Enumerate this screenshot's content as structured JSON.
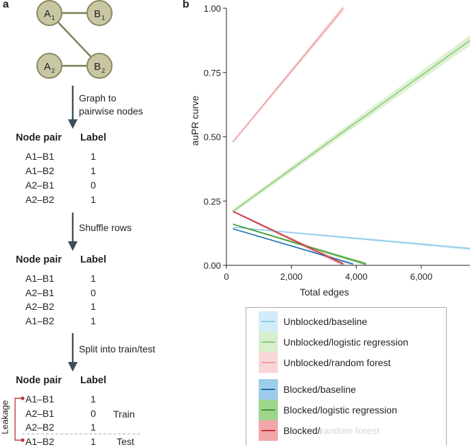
{
  "panel_a": {
    "letter": "a",
    "graph": {
      "nodes": [
        {
          "id": "A1",
          "main": "A",
          "sub": "1"
        },
        {
          "id": "B1",
          "main": "B",
          "sub": "1"
        },
        {
          "id": "A2",
          "main": "A",
          "sub": "2"
        },
        {
          "id": "B2",
          "main": "B",
          "sub": "2"
        }
      ],
      "edges": [
        [
          "A1",
          "B1"
        ],
        [
          "A1",
          "B2"
        ],
        [
          "A2",
          "B2"
        ]
      ],
      "colors": {
        "node_fill": "#c8c6a3",
        "node_stroke": "#8a8860",
        "edge": "#7c7a55"
      }
    },
    "steps": [
      {
        "lines": [
          "Graph to",
          "pairwise nodes"
        ]
      },
      {
        "lines": [
          "Shuffle rows"
        ]
      },
      {
        "lines": [
          "Split into train/test"
        ]
      }
    ],
    "tables": [
      {
        "header": [
          "Node pair",
          "Label"
        ],
        "rows": [
          [
            "A1–B1",
            "1"
          ],
          [
            "A1–B2",
            "1"
          ],
          [
            "A2–B1",
            "0"
          ],
          [
            "A2–B2",
            "1"
          ]
        ]
      },
      {
        "header": [
          "Node pair",
          "Label"
        ],
        "rows": [
          [
            "A1–B1",
            "1"
          ],
          [
            "A2–B1",
            "0"
          ],
          [
            "A2–B2",
            "1"
          ],
          [
            "A1–B2",
            "1"
          ]
        ]
      },
      {
        "header": [
          "Node pair",
          "Label"
        ],
        "rows": [
          [
            "A1–B1",
            "1"
          ],
          [
            "A2–B1",
            "0"
          ],
          [
            "A2–B2",
            "1"
          ],
          [
            "A1–B2",
            "1"
          ]
        ],
        "split_labels": {
          "train": "Train",
          "test": "Test"
        }
      }
    ],
    "leakage_label": "Leakage",
    "colors": {
      "arrow": "#3d4f5c",
      "leakage": "#c0393f"
    }
  },
  "panel_b": {
    "letter": "b",
    "chart_data": {
      "type": "line",
      "xlabel": "Total edges",
      "ylabel": "auPR curve",
      "xlim": [
        0,
        7500
      ],
      "ylim": [
        0,
        1.0
      ],
      "xticks": [
        0,
        2000,
        4000,
        6000
      ],
      "xtick_labels": [
        "0",
        "2,000",
        "4,000",
        "6,000"
      ],
      "yticks": [
        0,
        0.25,
        0.5,
        0.75,
        1.0
      ],
      "ytick_labels": [
        "0.00",
        "0.25",
        "0.50",
        "0.75",
        "1.00"
      ],
      "grid": false,
      "legend_position": "bottom-right, below plot",
      "series": [
        {
          "name": "Unblocked/baseline",
          "color": "#8fcbe8",
          "band": "#d3ecf8",
          "x": [
            200,
            7500
          ],
          "y": [
            0.148,
            0.065
          ],
          "ci": 0.006
        },
        {
          "name": "Unblocked/logistic regression",
          "color": "#8cca78",
          "band": "#d8eecd",
          "x": [
            200,
            7500
          ],
          "y": [
            0.21,
            0.875
          ],
          "ci": 0.02
        },
        {
          "name": "Unblocked/random forest",
          "color": "#ee9ea4",
          "band": "#f9d6d8",
          "x": [
            200,
            3600
          ],
          "y": [
            0.48,
            1.0
          ],
          "ci": 0.012
        },
        {
          "name": "Blocked/baseline",
          "color": "#1e6fae",
          "band": "#9dcdea",
          "x": [
            200,
            3900
          ],
          "y": [
            0.142,
            0.005
          ],
          "ci": 0.004
        },
        {
          "name": "Blocked/logistic regression",
          "color": "#3f9b35",
          "band": "#9ed58c",
          "x": [
            200,
            4300
          ],
          "y": [
            0.16,
            0.005
          ],
          "ci": 0.006
        },
        {
          "name": "Blocked/random forest",
          "color": "#c7343d",
          "band": "#f2a6aa",
          "x": [
            200,
            3600
          ],
          "y": [
            0.21,
            0.005
          ],
          "ci": 0.008
        }
      ]
    },
    "legend": [
      {
        "label": "Unblocked/baseline",
        "line": "#8fcbe8",
        "band": "#d3ecf8"
      },
      {
        "label": "Unblocked/logistic regression",
        "line": "#8cca78",
        "band": "#d8eecd"
      },
      {
        "label": "Unblocked/random forest",
        "line": "#ee9ea4",
        "band": "#f9d6d8"
      },
      {
        "label": "Blocked/baseline",
        "line": "#1e6fae",
        "band": "#9dcdea"
      },
      {
        "label": "Blocked/logistic regression",
        "line": "#3f9b35",
        "band": "#9ed58c"
      },
      {
        "label": "Blocked/random forest",
        "line": "#c7343d",
        "band": "#f2a6aa"
      }
    ]
  }
}
